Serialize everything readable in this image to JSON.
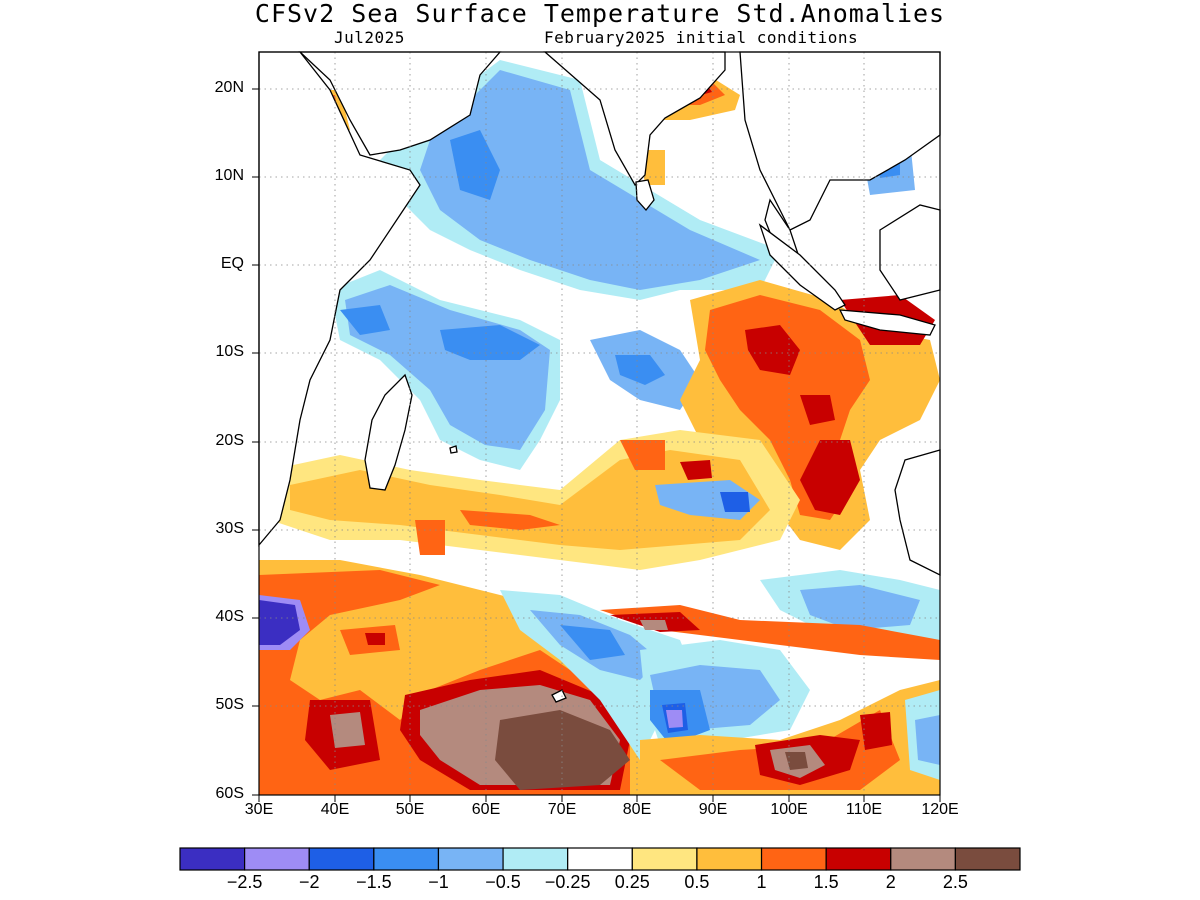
{
  "title": "CFSv2 Sea Surface Temperature Std.Anomalies",
  "subtitle_left": "Jul2025",
  "subtitle_right": "February2025 initial conditions",
  "map": {
    "region": "Indian Ocean",
    "lon_range": [
      30,
      120
    ],
    "lat_range": [
      -60,
      24
    ],
    "gridlines": "dotted",
    "lat_labels": [
      "20N",
      "10N",
      "EQ",
      "10S",
      "20S",
      "30S",
      "40S",
      "50S",
      "60S"
    ],
    "lon_labels": [
      "30E",
      "40E",
      "50E",
      "60E",
      "70E",
      "80E",
      "90E",
      "100E",
      "110E",
      "120E"
    ]
  },
  "colorbar": {
    "colors": [
      "#3b2ec2",
      "#9e8cf5",
      "#1e5fe6",
      "#3a8ef2",
      "#78b4f5",
      "#b0ecf5",
      "#ffffff",
      "#ffe680",
      "#ffbe3c",
      "#ff6414",
      "#c80000",
      "#b48a7e",
      "#7a4c3e"
    ],
    "labels": [
      "−2.5",
      "−2",
      "−1.5",
      "−1",
      "−0.5",
      "−0.25",
      "0.25",
      "0.5",
      "1",
      "1.5",
      "2",
      "2.5"
    ]
  }
}
